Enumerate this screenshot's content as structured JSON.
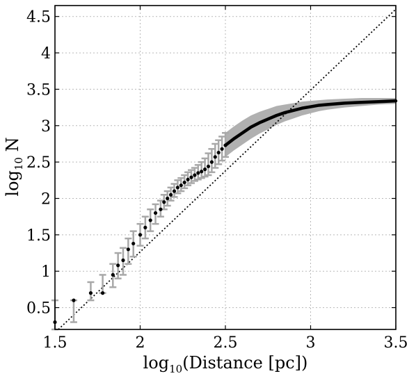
{
  "chart_data": {
    "type": "scatter",
    "title": "",
    "xlabel": "Distance [pc]",
    "xlabel_prefix": "log",
    "xlabel_sub": "10",
    "ylabel": "N",
    "ylabel_prefix": "log",
    "ylabel_sub": "10",
    "xlim": [
      1.5,
      3.5
    ],
    "ylim": [
      0.2,
      4.65
    ],
    "x_ticks": [
      1.5,
      2,
      2.5,
      3,
      3.5
    ],
    "x_tick_labels": [
      "1.5",
      "2",
      "2.5",
      "3",
      "3.5"
    ],
    "y_ticks": [
      0.5,
      1,
      1.5,
      2,
      2.5,
      3,
      3.5,
      4,
      4.5
    ],
    "y_tick_labels": [
      "0.5",
      "1",
      "1.5",
      "2",
      "2.5",
      "3",
      "3.5",
      "4",
      "4.5"
    ],
    "grid": true,
    "reference_line": {
      "style": "dotted",
      "x": [
        1.52,
        3.5
      ],
      "y": [
        0.2,
        4.6
      ]
    },
    "colors": {
      "points": "#000000",
      "errorbars": "#a8a8a8",
      "band": "#b0b0b0",
      "grid": "#b8b8b8"
    },
    "discrete_points": [
      {
        "x": 1.5,
        "y": 0.3,
        "lo": 0.2,
        "hi": 0.6
      },
      {
        "x": 1.61,
        "y": 0.6,
        "lo": 0.3,
        "hi": 0.6
      },
      {
        "x": 1.71,
        "y": 0.7,
        "lo": 0.6,
        "hi": 0.85
      },
      {
        "x": 1.78,
        "y": 0.7,
        "lo": 0.7,
        "hi": 0.95
      },
      {
        "x": 1.84,
        "y": 0.95,
        "lo": 0.78,
        "hi": 1.1
      },
      {
        "x": 1.87,
        "y": 1.08,
        "lo": 0.9,
        "hi": 1.25
      },
      {
        "x": 1.9,
        "y": 1.15,
        "lo": 0.95,
        "hi": 1.32
      },
      {
        "x": 1.93,
        "y": 1.3,
        "lo": 1.1,
        "hi": 1.45
      },
      {
        "x": 1.96,
        "y": 1.38,
        "lo": 1.2,
        "hi": 1.55
      },
      {
        "x": 2.0,
        "y": 1.5,
        "lo": 1.35,
        "hi": 1.65
      },
      {
        "x": 2.03,
        "y": 1.6,
        "lo": 1.45,
        "hi": 1.75
      },
      {
        "x": 2.06,
        "y": 1.7,
        "lo": 1.55,
        "hi": 1.85
      },
      {
        "x": 2.09,
        "y": 1.8,
        "lo": 1.65,
        "hi": 1.92
      },
      {
        "x": 2.12,
        "y": 1.85,
        "lo": 1.75,
        "hi": 1.97
      },
      {
        "x": 2.14,
        "y": 1.95,
        "lo": 1.85,
        "hi": 2.05
      },
      {
        "x": 2.16,
        "y": 2.0,
        "lo": 1.9,
        "hi": 2.1
      },
      {
        "x": 2.18,
        "y": 2.05,
        "lo": 1.97,
        "hi": 2.15
      },
      {
        "x": 2.2,
        "y": 2.1,
        "lo": 2.02,
        "hi": 2.2
      },
      {
        "x": 2.22,
        "y": 2.15,
        "lo": 2.07,
        "hi": 2.25
      },
      {
        "x": 2.24,
        "y": 2.18,
        "lo": 2.1,
        "hi": 2.28
      },
      {
        "x": 2.26,
        "y": 2.22,
        "lo": 2.14,
        "hi": 2.32
      },
      {
        "x": 2.28,
        "y": 2.26,
        "lo": 2.18,
        "hi": 2.36
      },
      {
        "x": 2.3,
        "y": 2.29,
        "lo": 2.21,
        "hi": 2.39
      },
      {
        "x": 2.32,
        "y": 2.32,
        "lo": 2.24,
        "hi": 2.42
      },
      {
        "x": 2.34,
        "y": 2.35,
        "lo": 2.26,
        "hi": 2.46
      },
      {
        "x": 2.36,
        "y": 2.37,
        "lo": 2.28,
        "hi": 2.5
      },
      {
        "x": 2.38,
        "y": 2.4,
        "lo": 2.3,
        "hi": 2.55
      },
      {
        "x": 2.4,
        "y": 2.44,
        "lo": 2.32,
        "hi": 2.62
      },
      {
        "x": 2.42,
        "y": 2.5,
        "lo": 2.36,
        "hi": 2.68
      },
      {
        "x": 2.44,
        "y": 2.57,
        "lo": 2.42,
        "hi": 2.75
      },
      {
        "x": 2.46,
        "y": 2.63,
        "lo": 2.47,
        "hi": 2.8
      },
      {
        "x": 2.48,
        "y": 2.68,
        "lo": 2.52,
        "hi": 2.85
      },
      {
        "x": 2.5,
        "y": 2.73,
        "lo": 2.57,
        "hi": 2.9
      }
    ],
    "curve_x": [
      2.5,
      2.55,
      2.6,
      2.65,
      2.7,
      2.75,
      2.8,
      2.85,
      2.9,
      2.95,
      3.0,
      3.05,
      3.1,
      3.2,
      3.3,
      3.4,
      3.5
    ],
    "curve_y": [
      2.73,
      2.82,
      2.9,
      2.98,
      3.04,
      3.09,
      3.14,
      3.18,
      3.21,
      3.24,
      3.26,
      3.28,
      3.29,
      3.31,
      3.32,
      3.33,
      3.34
    ],
    "band_lo": [
      2.57,
      2.66,
      2.74,
      2.82,
      2.89,
      2.95,
      3.01,
      3.06,
      3.1,
      3.14,
      3.17,
      3.2,
      3.22,
      3.25,
      3.27,
      3.29,
      3.3
    ],
    "band_hi": [
      2.9,
      2.99,
      3.07,
      3.14,
      3.19,
      3.23,
      3.27,
      3.29,
      3.31,
      3.33,
      3.34,
      3.35,
      3.36,
      3.37,
      3.38,
      3.38,
      3.38
    ]
  }
}
